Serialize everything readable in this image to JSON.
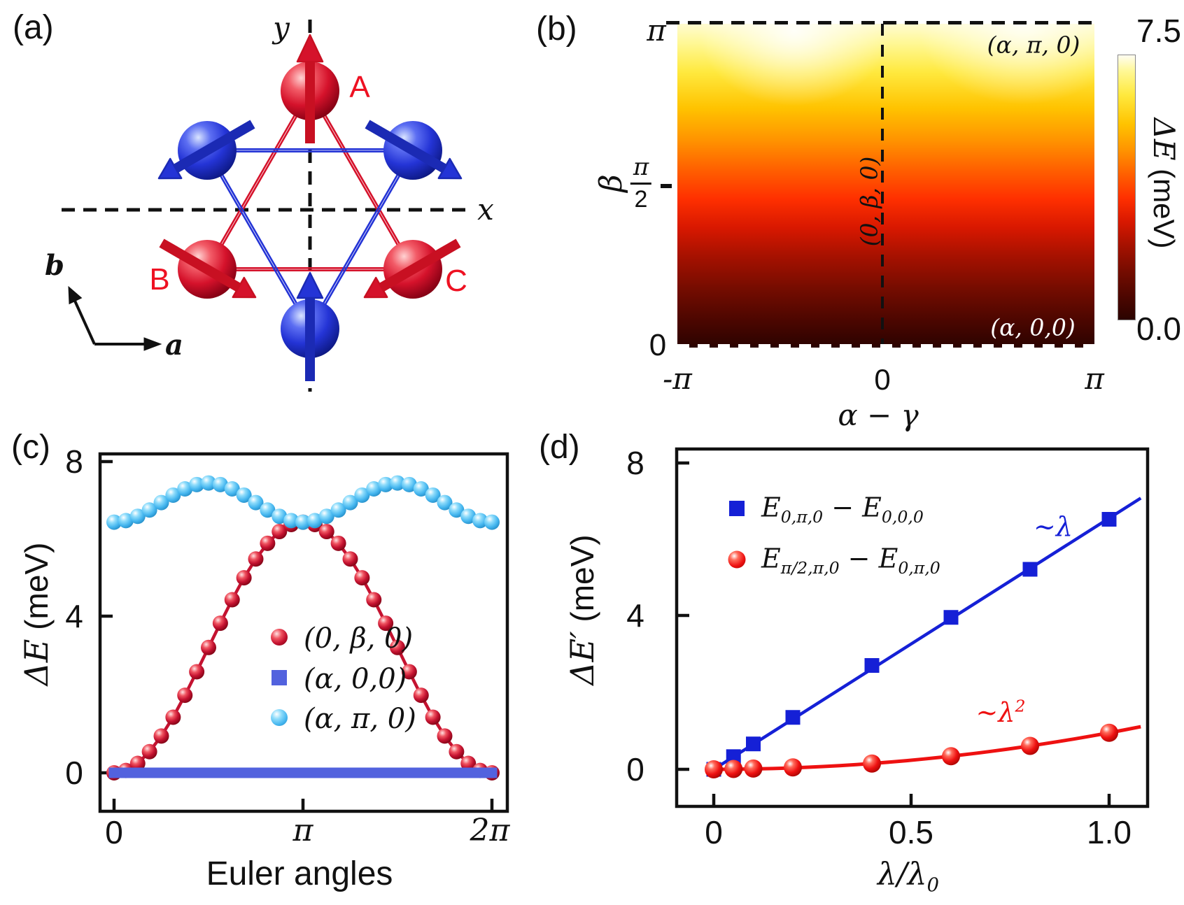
{
  "panels": {
    "a": {
      "label": "(a)",
      "sites": {
        "A": "A",
        "B": "B",
        "C": "C"
      },
      "axes": {
        "x": "x",
        "y": "y"
      },
      "basis": {
        "a": "a",
        "b": "b"
      },
      "spin_directions": {
        "A_red_top": "up",
        "B_red_bottom_left": "down-right",
        "C_red_bottom_right": "down-left",
        "blue_top_left": "down-left",
        "blue_top_right": "down-right",
        "blue_bottom": "up"
      },
      "colors": {
        "red_sublattice": "#d5122b",
        "blue_sublattice": "#2434d6"
      }
    },
    "b": {
      "label": "(b)",
      "xlabel": "α − γ",
      "ylabel": "β",
      "xticks": [
        "-π",
        "0",
        "π"
      ],
      "yticks": {
        "top": "π",
        "mid_num": "π",
        "mid_den": "2",
        "bottom": "0"
      },
      "colorbar": {
        "max": "7.5",
        "min": "0.0",
        "label_math": "ΔE",
        "label_unit": " (meV)"
      },
      "ann_top_right": "(α, π, 0)",
      "ann_bottom_right": "(α, 0,0)",
      "ann_center": "(0, β, 0)"
    },
    "c": {
      "label": "(c)",
      "xlabel": "Euler angles",
      "ylabel_math": "ΔE",
      "ylabel_unit": " (meV)",
      "xticks": [
        "0",
        "π",
        "2π"
      ],
      "yticks": [
        "0",
        "4",
        "8"
      ],
      "legend": [
        "(0, β, 0)",
        "(α, 0,0)",
        "(α, π, 0)"
      ]
    },
    "d": {
      "label": "(d)",
      "xlabel_math": "λ/λ",
      "xlabel_sub": "0",
      "ylabel_math": "ΔE′",
      "ylabel_unit": " (meV)",
      "xticks": [
        "0",
        "0.5",
        "1.0"
      ],
      "yticks": [
        "0",
        "4",
        "8"
      ],
      "legend": [
        {
          "segments": [
            {
              "t": "E"
            },
            {
              "t": "0,π,0",
              "sub": 1
            },
            {
              "t": " − E"
            },
            {
              "t": "0,0,0",
              "sub": 1
            }
          ]
        },
        {
          "segments": [
            {
              "t": "E"
            },
            {
              "t": "π/2,π,0",
              "sub": 1
            },
            {
              "t": " − E"
            },
            {
              "t": "0,π,0",
              "sub": 1
            }
          ]
        }
      ],
      "ann_blue": "~λ",
      "ann_red_base": "~λ",
      "ann_red_sup": "2"
    }
  },
  "chart_data": [
    {
      "id": "b",
      "type": "heatmap",
      "xlabel": "α − γ",
      "ylabel": "β",
      "xlim": [
        "-π",
        "π"
      ],
      "ylim": [
        "0",
        "π"
      ],
      "xticks": [
        "-π",
        "0",
        "π"
      ],
      "yticks": [
        "0",
        "π/2",
        "π"
      ],
      "colorbar": {
        "label": "ΔE (meV)",
        "min": 0.0,
        "max": 7.5,
        "colormap": "hot"
      },
      "model": "ΔE ≈ 7.5·sin²(β/2) with weak (α−γ) modulation; brightest near β = π at α−γ ≈ ±π/2",
      "values_grid": {
        "alpha_minus_gamma_over_pi": [
          -1,
          -0.5,
          0,
          0.5,
          1
        ],
        "beta_over_pi": [
          0,
          0.25,
          0.5,
          0.75,
          1
        ],
        "delta_E_meV": [
          [
            0.0,
            0.0,
            0.0,
            0.0,
            0.0
          ],
          [
            1.0,
            1.1,
            1.0,
            1.1,
            1.0
          ],
          [
            3.6,
            3.8,
            3.6,
            3.8,
            3.6
          ],
          [
            6.2,
            6.6,
            6.2,
            6.6,
            6.2
          ],
          [
            7.1,
            7.5,
            7.1,
            7.5,
            7.1
          ]
        ]
      },
      "annotations": [
        "(α, π, 0)",
        "(0, β, 0)",
        "(α, 0,0)"
      ]
    },
    {
      "id": "c",
      "type": "line",
      "xlabel": "Euler angles",
      "ylabel": "ΔE (meV)",
      "xticks": [
        "0",
        "π",
        "2π"
      ],
      "yticks": [
        0,
        4,
        8
      ],
      "xlim_over_pi": [
        -0.08,
        2.08
      ],
      "ylim": [
        -1.0,
        8.15
      ],
      "series": [
        {
          "name": "(0, β, 0)",
          "marker": "sphere",
          "grad": "g-red",
          "color": "#c41230",
          "r": 11,
          "line_width": 4.5,
          "x_unit": "π",
          "x_start": 0,
          "x_step": 0.0625,
          "y": [
            0,
            0.06,
            0.24,
            0.54,
            0.94,
            1.42,
            1.98,
            2.58,
            3.2,
            3.82,
            4.42,
            4.98,
            5.46,
            5.86,
            6.16,
            6.34,
            6.4,
            6.34,
            6.16,
            5.86,
            5.46,
            4.98,
            4.42,
            3.82,
            3.2,
            2.58,
            1.98,
            1.42,
            0.94,
            0.54,
            0.24,
            0.06,
            0
          ]
        },
        {
          "name": "(α, 0,0)",
          "marker": "square",
          "color": "#5262de",
          "size": 15,
          "line": false,
          "x_unit": "π",
          "x_start": 0,
          "x_step": 0.05,
          "n": 41,
          "y_const": 0
        },
        {
          "name": "(α, π, 0)",
          "marker": "sphere",
          "grad": "g-sky",
          "color": "#45b6ef",
          "r": 11,
          "line_width": 4,
          "x_unit": "π",
          "x_start": 0,
          "x_step": 0.0625,
          "y": [
            6.4,
            6.44,
            6.55,
            6.71,
            6.9,
            7.09,
            7.25,
            7.36,
            7.4,
            7.36,
            7.25,
            7.09,
            6.9,
            6.71,
            6.55,
            6.44,
            6.4,
            6.44,
            6.55,
            6.71,
            6.9,
            7.09,
            7.25,
            7.36,
            7.4,
            7.36,
            7.25,
            7.09,
            6.9,
            6.71,
            6.55,
            6.44,
            6.4
          ]
        }
      ]
    },
    {
      "id": "d",
      "type": "scatter",
      "xlabel": "λ/λ₀",
      "ylabel": "ΔE′ (meV)",
      "xticks": [
        0,
        0.5,
        1.0
      ],
      "yticks": [
        0,
        4,
        8
      ],
      "xlim": [
        -0.095,
        1.1
      ],
      "ylim": [
        -0.95,
        8.3
      ],
      "series": [
        {
          "name": "E(0,π,0) − E(0,0,0)",
          "marker": "square",
          "color": "#1520d6",
          "size": 21,
          "x": [
            0,
            0.05,
            0.1,
            0.2,
            0.4,
            0.6,
            0.8,
            1.0
          ],
          "y": [
            0,
            0.33,
            0.66,
            1.35,
            2.7,
            3.95,
            5.2,
            6.5
          ],
          "trend_label": "~λ",
          "fit": {
            "type": "linear",
            "x": [
              0,
              1.08
            ],
            "y": [
              0,
              7.05
            ]
          }
        },
        {
          "name": "E(π/2,π,0) − E(0,π,0)",
          "marker": "sphere",
          "grad": "g-bred",
          "color": "#ee1111",
          "r": 13,
          "line_width": 5,
          "x": [
            0,
            0.05,
            0.1,
            0.2,
            0.4,
            0.6,
            0.8,
            1.0
          ],
          "y": [
            0,
            0.01,
            0.02,
            0.05,
            0.15,
            0.34,
            0.61,
            0.95
          ],
          "trend_label": "~λ²",
          "fit": {
            "type": "quadratic",
            "coef": 0.95,
            "x_range": [
              -0.02,
              1.08
            ]
          }
        }
      ]
    }
  ]
}
